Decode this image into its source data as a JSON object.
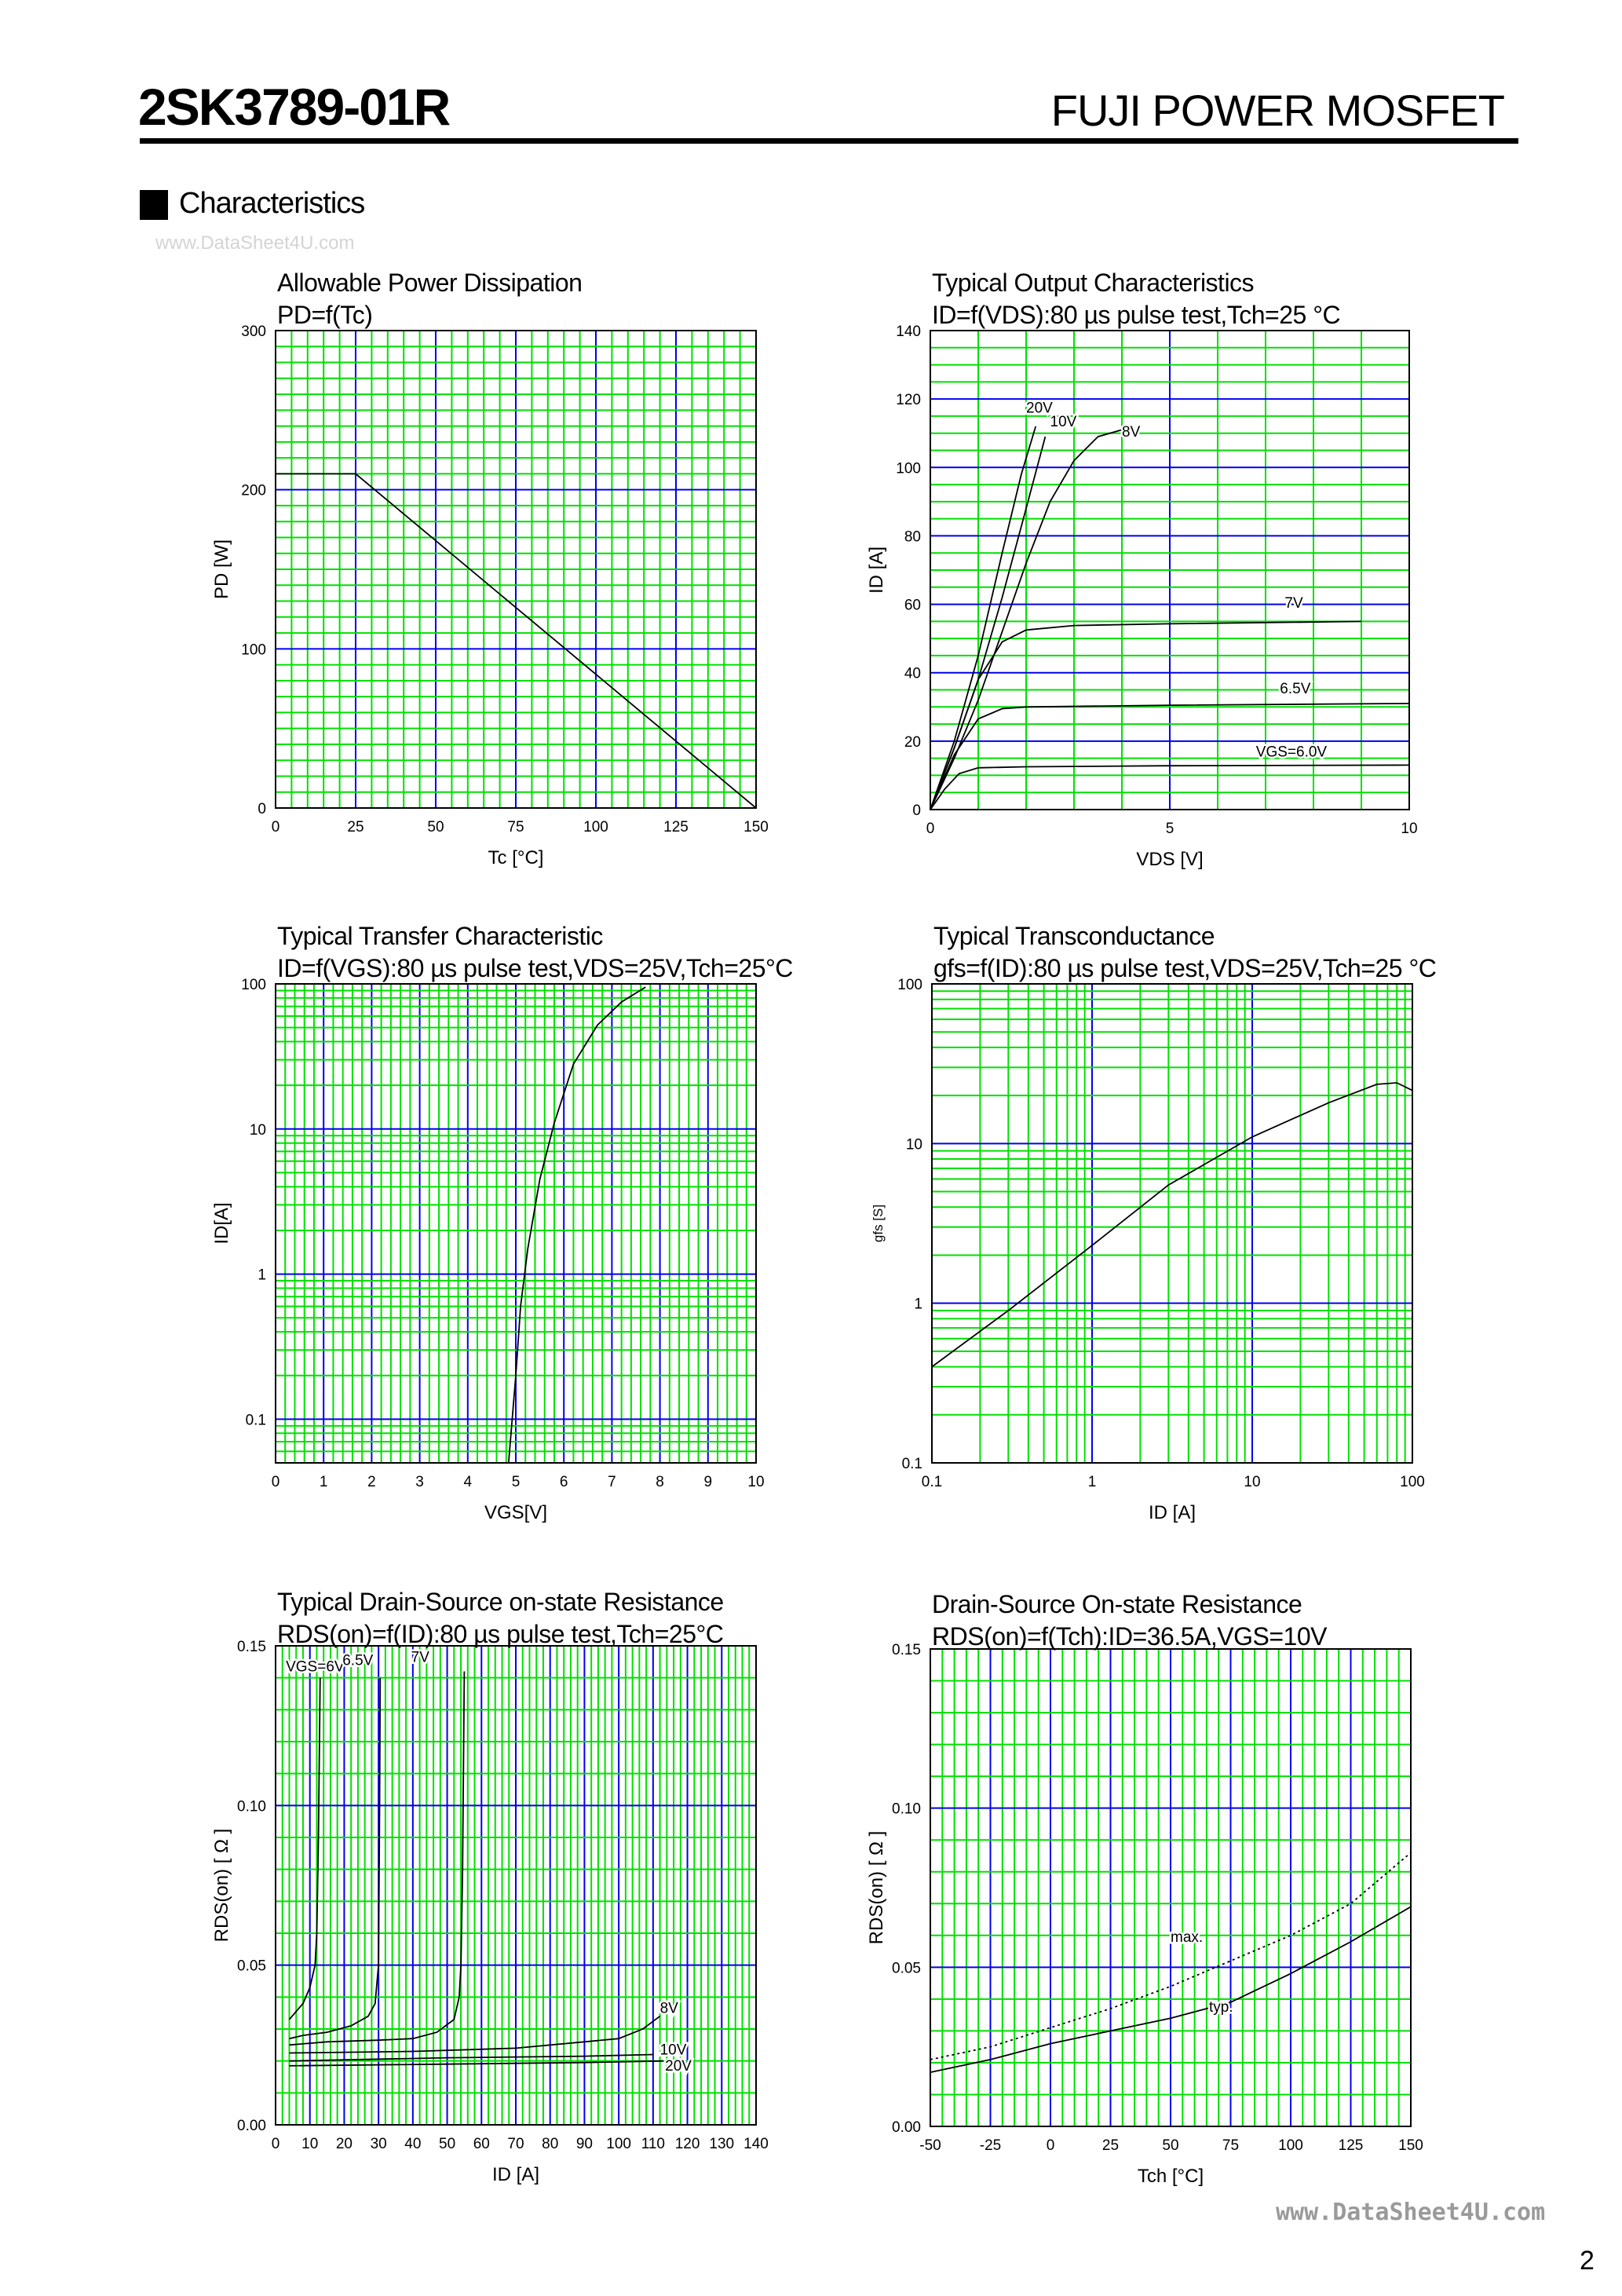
{
  "header": {
    "part_number": "2SK3789-01R",
    "brand": "FUJI POWER MOSFET"
  },
  "section": {
    "title": "Characteristics"
  },
  "watermark_top": "www.DataSheet4U.com",
  "watermark_bottom": "www.DataSheet4U.com",
  "page_number": "2",
  "colors": {
    "grid_minor": "#00e000",
    "grid_major": "#0000ee",
    "curve": "#000000"
  },
  "chart_data": [
    {
      "type": "line",
      "title": "Allowable Power Dissipation",
      "subtitle": "PD=f(Tc)",
      "xlabel": "Tc [°C]",
      "ylabel": "PD [W]",
      "xscale": "linear",
      "yscale": "linear",
      "xlim": [
        0,
        150
      ],
      "ylim": [
        0,
        300
      ],
      "xticks": [
        0,
        25,
        50,
        75,
        100,
        125,
        150
      ],
      "xtick_labels": [
        "0",
        "25",
        "50",
        "75",
        "100",
        "125",
        "150"
      ],
      "yticks": [
        0,
        100,
        200,
        300
      ],
      "ytick_labels": [
        "0",
        "100",
        "200",
        "300"
      ],
      "grid": {
        "x_minor": 5,
        "x_major": 25,
        "y_minor": 10,
        "y_major": 100
      },
      "series": [
        {
          "values": [
            [
              0,
              210
            ],
            [
              25,
              210
            ],
            [
              150,
              0
            ]
          ]
        }
      ]
    },
    {
      "type": "line",
      "title": "Typical Output Characteristics",
      "subtitle": "ID=f(VDS):80 µs pulse test,Tch=25 °C",
      "xlabel": "VDS [V]",
      "ylabel": "ID [A]",
      "xscale": "linear",
      "yscale": "linear",
      "xlim": [
        0,
        10
      ],
      "ylim": [
        0,
        140
      ],
      "xticks": [
        0,
        5,
        10
      ],
      "xtick_labels": [
        "0",
        "5",
        "10"
      ],
      "yticks": [
        0,
        20,
        40,
        60,
        80,
        100,
        120,
        140
      ],
      "ytick_labels": [
        "0",
        "20",
        "40",
        "60",
        "80",
        "100",
        "120",
        "140"
      ],
      "grid": {
        "x_minor": 1,
        "x_major": 5,
        "y_minor": 5,
        "y_major": 20
      },
      "series": [
        {
          "name": "20V",
          "values": [
            [
              0,
              0
            ],
            [
              0.5,
              20
            ],
            [
              1,
              45
            ],
            [
              1.5,
              75
            ],
            [
              1.9,
              98
            ],
            [
              2.2,
              112
            ]
          ]
        },
        {
          "name": "10V",
          "values": [
            [
              0,
              0
            ],
            [
              0.5,
              18
            ],
            [
              1,
              38
            ],
            [
              1.5,
              62
            ],
            [
              2,
              88
            ],
            [
              2.4,
              109
            ]
          ]
        },
        {
          "name": "8V",
          "values": [
            [
              0,
              0
            ],
            [
              0.5,
              15
            ],
            [
              1,
              32
            ],
            [
              1.5,
              52
            ],
            [
              2,
              72
            ],
            [
              2.5,
              90
            ],
            [
              3,
              102
            ],
            [
              3.5,
              109
            ],
            [
              4,
              111
            ]
          ]
        },
        {
          "name": "7V",
          "values": [
            [
              0,
              0
            ],
            [
              0.5,
              18
            ],
            [
              1,
              38
            ],
            [
              1.5,
              49
            ],
            [
              2,
              52.5
            ],
            [
              3,
              53.8
            ],
            [
              5,
              54.3
            ],
            [
              9,
              55
            ]
          ]
        },
        {
          "name": "6.5V",
          "values": [
            [
              0,
              0
            ],
            [
              0.5,
              16
            ],
            [
              1,
              26.5
            ],
            [
              1.5,
              29.5
            ],
            [
              2,
              30
            ],
            [
              5,
              30.5
            ],
            [
              10,
              31
            ]
          ]
        },
        {
          "name": "VGS=6.0V",
          "values": [
            [
              0,
              0
            ],
            [
              0.3,
              6
            ],
            [
              0.6,
              10.5
            ],
            [
              1,
              12.2
            ],
            [
              2,
              12.5
            ],
            [
              5,
              12.8
            ],
            [
              10,
              13
            ]
          ]
        }
      ]
    },
    {
      "type": "line",
      "title": "Typical Transfer Characteristic",
      "subtitle": "ID=f(VGS):80 µs pulse test,VDS=25V,Tch=25°C",
      "xlabel": "VGS[V]",
      "ylabel": "ID[A]",
      "xscale": "linear",
      "yscale": "log",
      "xlim": [
        0,
        10
      ],
      "ylim": [
        0.05,
        100
      ],
      "xticks": [
        0,
        1,
        2,
        3,
        4,
        5,
        6,
        7,
        8,
        9,
        10
      ],
      "xtick_labels": [
        "0",
        "1",
        "2",
        "3",
        "4",
        "5",
        "6",
        "7",
        "8",
        "9",
        "10"
      ],
      "yticks": [
        0.1,
        1,
        10,
        100
      ],
      "ytick_labels": [
        "0.1",
        "1",
        "10",
        "100"
      ],
      "grid": {
        "x_minor": 0.2,
        "x_major": 1
      },
      "series": [
        {
          "values": [
            [
              4.85,
              0.05
            ],
            [
              5,
              0.2
            ],
            [
              5.1,
              0.6
            ],
            [
              5.25,
              1.5
            ],
            [
              5.5,
              4.5
            ],
            [
              5.8,
              11
            ],
            [
              6.2,
              28
            ],
            [
              6.7,
              52
            ],
            [
              7.2,
              75
            ],
            [
              7.7,
              95
            ]
          ]
        }
      ]
    },
    {
      "type": "line",
      "title": "Typical Transconductance",
      "subtitle": "gfs=f(ID):80 µs pulse test,VDS=25V,Tch=25  °C",
      "xlabel": "ID [A]",
      "ylabel": "gfs [S]",
      "xscale": "log",
      "yscale": "log",
      "xlim": [
        0.1,
        100
      ],
      "ylim": [
        0.1,
        100
      ],
      "xticks": [
        0.1,
        1,
        10,
        100
      ],
      "xtick_labels": [
        "0.1",
        "1",
        "10",
        "100"
      ],
      "yticks": [
        0.1,
        1,
        10,
        100
      ],
      "ytick_labels": [
        "0.1",
        "1",
        "10",
        "100"
      ],
      "grid": {},
      "series": [
        {
          "values": [
            [
              0.1,
              0.4
            ],
            [
              0.3,
              0.9
            ],
            [
              1,
              2.3
            ],
            [
              3,
              5.5
            ],
            [
              10,
              11
            ],
            [
              30,
              18
            ],
            [
              60,
              23.5
            ],
            [
              80,
              24
            ],
            [
              100,
              21.5
            ]
          ]
        }
      ]
    },
    {
      "type": "line",
      "title": "Typical Drain-Source on-state Resistance",
      "subtitle": "RDS(on)=f(ID):80  µs pulse test,Tch=25°C",
      "xlabel": "ID [A]",
      "ylabel": "RDS(on) [ Ω ]",
      "xscale": "linear",
      "yscale": "linear",
      "xlim": [
        0,
        140
      ],
      "ylim": [
        0,
        0.15
      ],
      "xticks": [
        0,
        10,
        20,
        30,
        40,
        50,
        60,
        70,
        80,
        90,
        100,
        110,
        120,
        130,
        140
      ],
      "xtick_labels": [
        "0",
        "10",
        "20",
        "30",
        "40",
        "50",
        "60",
        "70",
        "80",
        "90",
        "100",
        "110",
        "120",
        "130",
        "140"
      ],
      "yticks": [
        0,
        0.05,
        0.1,
        0.15
      ],
      "ytick_labels": [
        "0.00",
        "0.05",
        "0.10",
        "0.15"
      ],
      "grid": {
        "x_minor": 2,
        "x_major": 10,
        "y_minor": 0.01,
        "y_major": 0.05
      },
      "series": [
        {
          "name": "VGS=6V",
          "values": [
            [
              4,
              0.033
            ],
            [
              8,
              0.038
            ],
            [
              10,
              0.043
            ],
            [
              11.5,
              0.05
            ],
            [
              12,
              0.06
            ],
            [
              12.5,
              0.09
            ],
            [
              13,
              0.14
            ]
          ]
        },
        {
          "name": "6.5V",
          "values": [
            [
              4,
              0.027
            ],
            [
              8,
              0.028
            ],
            [
              15,
              0.029
            ],
            [
              22,
              0.031
            ],
            [
              27,
              0.034
            ],
            [
              29,
              0.038
            ],
            [
              30,
              0.05
            ],
            [
              30.3,
              0.1
            ],
            [
              30.5,
              0.14
            ]
          ]
        },
        {
          "name": "7V",
          "values": [
            [
              4,
              0.025
            ],
            [
              15,
              0.026
            ],
            [
              30,
              0.0265
            ],
            [
              40,
              0.027
            ],
            [
              47,
              0.029
            ],
            [
              52,
              0.033
            ],
            [
              53.5,
              0.04
            ],
            [
              54,
              0.05
            ],
            [
              54.5,
              0.08
            ],
            [
              55,
              0.142
            ]
          ]
        },
        {
          "name": "8V",
          "values": [
            [
              4,
              0.0225
            ],
            [
              40,
              0.023
            ],
            [
              70,
              0.024
            ],
            [
              90,
              0.026
            ],
            [
              100,
              0.027
            ],
            [
              107,
              0.03
            ],
            [
              112,
              0.034
            ]
          ]
        },
        {
          "name": "10V",
          "values": [
            [
              4,
              0.02
            ],
            [
              50,
              0.021
            ],
            [
              90,
              0.0215
            ],
            [
              110,
              0.022
            ]
          ]
        },
        {
          "name": "20V",
          "values": [
            [
              4,
              0.0185
            ],
            [
              50,
              0.019
            ],
            [
              90,
              0.0195
            ],
            [
              113,
              0.02
            ]
          ]
        }
      ]
    },
    {
      "type": "line",
      "title": "Drain-Source On-state Resistance",
      "subtitle": "RDS(on)=f(Tch):ID=36.5A,VGS=10V",
      "xlabel": "Tch [°C]",
      "ylabel": "RDS(on) [ Ω ]",
      "xscale": "linear",
      "yscale": "linear",
      "xlim": [
        -50,
        150
      ],
      "ylim": [
        0,
        0.15
      ],
      "xticks": [
        -50,
        -25,
        0,
        25,
        50,
        75,
        100,
        125,
        150
      ],
      "xtick_labels": [
        "-50",
        "-25",
        "0",
        "25",
        "50",
        "75",
        "100",
        "125",
        "150"
      ],
      "yticks": [
        0,
        0.05,
        0.1,
        0.15
      ],
      "ytick_labels": [
        "0.00",
        "0.05",
        "0.10",
        "0.15"
      ],
      "grid": {
        "x_minor": 5,
        "x_major": 25,
        "y_minor": 0.01,
        "y_major": 0.05
      },
      "series": [
        {
          "name": "max.",
          "style": "dotted",
          "values": [
            [
              -50,
              0.021
            ],
            [
              -25,
              0.025
            ],
            [
              0,
              0.031
            ],
            [
              25,
              0.037
            ],
            [
              50,
              0.044
            ],
            [
              75,
              0.052
            ],
            [
              100,
              0.06
            ],
            [
              125,
              0.07
            ],
            [
              150,
              0.086
            ]
          ]
        },
        {
          "name": "typ.",
          "values": [
            [
              -50,
              0.017
            ],
            [
              -25,
              0.021
            ],
            [
              0,
              0.026
            ],
            [
              25,
              0.03
            ],
            [
              50,
              0.034
            ],
            [
              75,
              0.039
            ],
            [
              100,
              0.048
            ],
            [
              125,
              0.058
            ],
            [
              150,
              0.069
            ]
          ]
        }
      ]
    }
  ]
}
